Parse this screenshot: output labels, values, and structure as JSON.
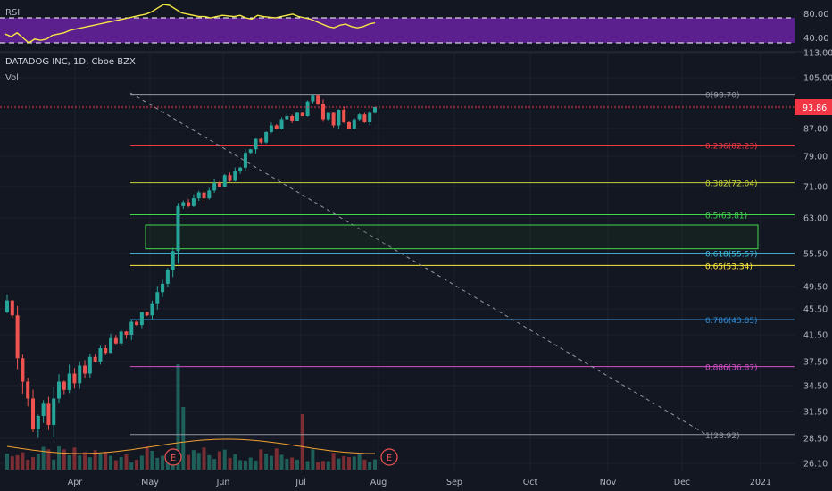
{
  "rsi_pane": {
    "label": "RSI",
    "ticks": [
      "80.00",
      "40.00"
    ],
    "overbought": 70,
    "oversold": 30,
    "line_color": "#f5e942",
    "band_color": "#5b1f8e",
    "values": [
      44,
      40,
      46,
      38,
      30,
      36,
      34,
      36,
      42,
      44,
      46,
      50,
      52,
      54,
      56,
      58,
      60,
      62,
      64,
      66,
      68,
      70,
      72,
      74,
      76,
      80,
      86,
      92,
      90,
      84,
      78,
      76,
      74,
      72,
      72,
      70,
      72,
      74,
      73,
      72,
      74,
      70,
      68,
      74,
      72,
      71,
      70,
      72,
      74,
      76,
      72,
      70,
      68,
      64,
      60,
      56,
      54,
      58,
      60,
      56,
      54,
      56,
      60,
      62
    ]
  },
  "header": {
    "symbol_title": "DATADOG INC, 1D, Cboe BZX",
    "vol_label": "Vol"
  },
  "price_axis": {
    "ticks": [
      "113.00",
      "105.00",
      "93.86",
      "87.00",
      "79.00",
      "71.00",
      "63.00",
      "55.50",
      "49.50",
      "45.50",
      "41.50",
      "37.50",
      "34.50",
      "31.50",
      "28.50",
      "26.10"
    ],
    "current_price": "93.86",
    "current_color": "#f23645"
  },
  "time_axis": {
    "labels": [
      "Apr",
      "May",
      "Jun",
      "Jul",
      "Aug",
      "Sep",
      "Oct",
      "Nov",
      "Dec",
      "2021"
    ]
  },
  "fib_levels": [
    {
      "label": "0(98.70)",
      "price": 98.7,
      "color": "#9598a1"
    },
    {
      "label": "0.236(82.23)",
      "price": 82.23,
      "color": "#f23645"
    },
    {
      "label": "0.382(72.04)",
      "price": 72.04,
      "color": "#c6d33a"
    },
    {
      "label": "0.5(63.81)",
      "price": 63.81,
      "color": "#3fd84a"
    },
    {
      "label": "0.618(55.57)",
      "price": 55.57,
      "color": "#40bfe0"
    },
    {
      "label": "0.65(53.34)",
      "price": 53.34,
      "color": "#ffeb3b"
    },
    {
      "label": "0.786(43.85)",
      "price": 43.85,
      "color": "#2f8fd8"
    },
    {
      "label": "0.886(36.87)",
      "price": 36.87,
      "color": "#d64fc6"
    },
    {
      "label": "1(28.92)",
      "price": 28.92,
      "color": "#9598a1"
    }
  ],
  "zone": {
    "top": 61.5,
    "bottom": 56.5,
    "color": "#3fd84a"
  },
  "earnings_markers": [
    {
      "label": "E"
    },
    {
      "label": "E"
    }
  ],
  "colors": {
    "up": "#26a69a",
    "down": "#ef5350",
    "volume_ma": "#f0a030"
  },
  "chart_data": {
    "type": "candlestick",
    "title": "DATADOG INC, 1D, Cboe BZX",
    "xlabel": "",
    "ylabel": "",
    "ylim": [
      26.1,
      113
    ],
    "x_ticks": [
      "Apr",
      "May",
      "Jun",
      "Jul",
      "Aug",
      "Sep",
      "Oct",
      "Nov",
      "Dec",
      "2021"
    ],
    "closes": [
      47,
      44.5,
      38,
      35,
      33,
      29.5,
      31,
      32.5,
      30,
      33,
      35,
      34,
      36,
      34.8,
      37,
      36,
      38.2,
      37.5,
      39.5,
      38.8,
      41,
      40.2,
      42,
      41.5,
      43.5,
      43,
      45,
      44.5,
      46.5,
      48.5,
      50,
      52.5,
      56,
      66,
      67,
      66,
      68,
      69.5,
      68,
      70,
      72,
      71,
      74,
      72.5,
      75,
      76,
      80,
      81,
      84,
      83,
      86,
      88,
      87,
      90,
      91,
      89.5,
      92,
      91,
      96,
      98.5,
      95,
      90,
      92,
      88,
      93,
      89,
      87,
      90,
      91.5,
      89,
      92,
      93.86
    ]
  }
}
